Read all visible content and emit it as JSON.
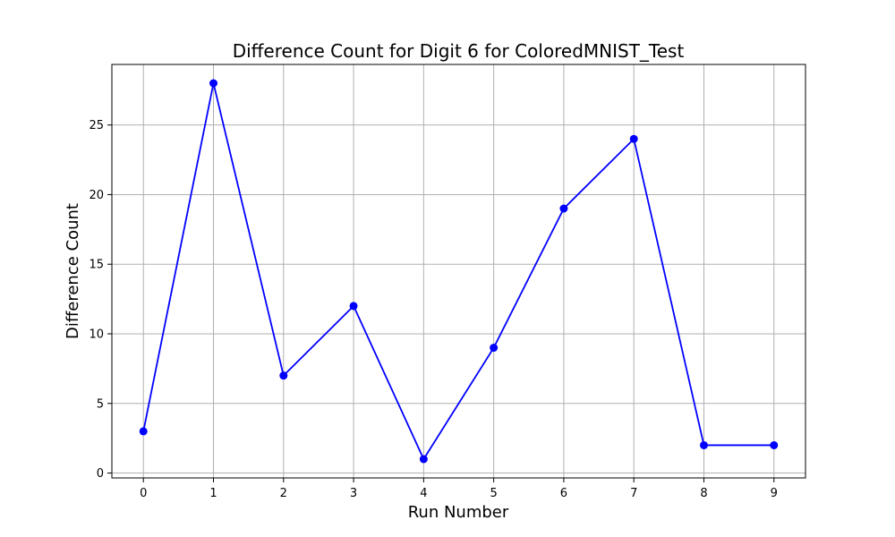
{
  "chart_data": {
    "type": "line",
    "title": "Difference Count for Digit 6 for ColoredMNIST_Test",
    "xlabel": "Run Number",
    "ylabel": "Difference Count",
    "x": [
      0,
      1,
      2,
      3,
      4,
      5,
      6,
      7,
      8,
      9
    ],
    "values": [
      3,
      28,
      7,
      12,
      1,
      9,
      19,
      24,
      2,
      2
    ],
    "xlim": [
      -0.45,
      9.45
    ],
    "ylim": [
      -0.35,
      29.35
    ],
    "xticks": [
      0,
      1,
      2,
      3,
      4,
      5,
      6,
      7,
      8,
      9
    ],
    "yticks": [
      0,
      5,
      10,
      15,
      20,
      25
    ],
    "grid": true,
    "line_color": "#0000ff",
    "marker": "circle",
    "grid_color": "#b0b0b0"
  }
}
